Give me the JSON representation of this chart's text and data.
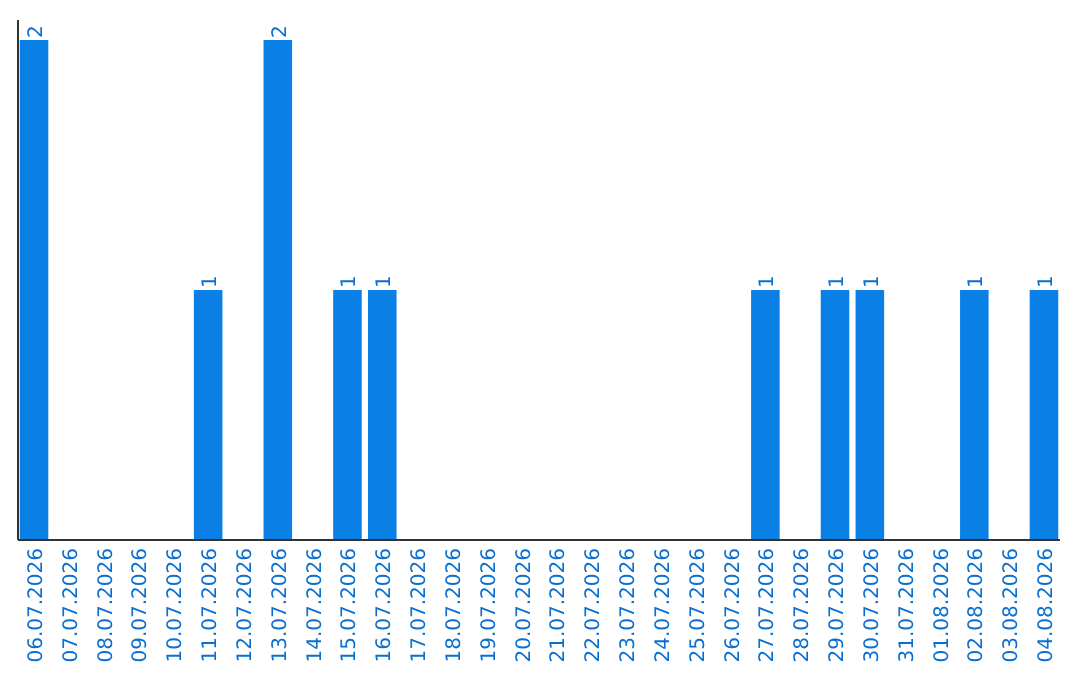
{
  "chart_data": {
    "type": "bar",
    "categories": [
      "06.07.2026",
      "07.07.2026",
      "08.07.2026",
      "09.07.2026",
      "10.07.2026",
      "11.07.2026",
      "12.07.2026",
      "13.07.2026",
      "14.07.2026",
      "15.07.2026",
      "16.07.2026",
      "17.07.2026",
      "18.07.2026",
      "19.07.2026",
      "20.07.2026",
      "21.07.2026",
      "22.07.2026",
      "23.07.2026",
      "24.07.2026",
      "25.07.2026",
      "26.07.2026",
      "27.07.2026",
      "28.07.2026",
      "29.07.2026",
      "30.07.2026",
      "31.07.2026",
      "01.08.2026",
      "02.08.2026",
      "03.08.2026",
      "04.08.2026"
    ],
    "values": [
      2,
      0,
      0,
      0,
      0,
      1,
      0,
      2,
      0,
      1,
      1,
      0,
      0,
      0,
      0,
      0,
      0,
      0,
      0,
      0,
      0,
      1,
      0,
      1,
      1,
      0,
      0,
      1,
      0,
      1
    ],
    "value_labels": [
      "2",
      null,
      null,
      null,
      null,
      "1",
      null,
      "2",
      null,
      "1",
      "1",
      null,
      null,
      null,
      null,
      null,
      null,
      null,
      null,
      null,
      null,
      "1",
      null,
      "1",
      "1",
      null,
      null,
      "1",
      null,
      "1"
    ],
    "color": "#0a7fe6"
  }
}
